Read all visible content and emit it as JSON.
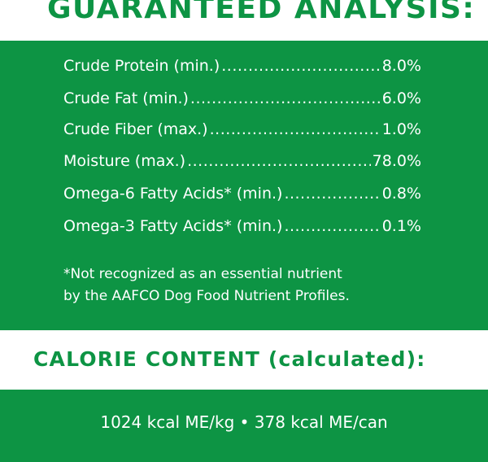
{
  "colors": {
    "brand_green": "#0d9444",
    "white": "#ffffff"
  },
  "analysis": {
    "title": "GUARANTEED ANALYSIS:",
    "rows": [
      {
        "label": "Crude Protein (min.)",
        "value": "8.0%"
      },
      {
        "label": "Crude Fat (min.)",
        "value": "6.0%"
      },
      {
        "label": "Crude Fiber (max.)",
        "value": "1.0%"
      },
      {
        "label": "Moisture (max.)",
        "value": "78.0%"
      },
      {
        "label": "Omega-6 Fatty Acids* (min.)",
        "value": "0.8%"
      },
      {
        "label": "Omega-3 Fatty Acids* (min.)",
        "value": "0.1%"
      }
    ],
    "footnote_line1": "*Not recognized as an essential nutrient",
    "footnote_line2": "by the AAFCO Dog Food Nutrient Profiles."
  },
  "calorie": {
    "title": "CALORIE CONTENT (calculated):",
    "value": "1024 kcal ME/kg • 378 kcal ME/can"
  }
}
